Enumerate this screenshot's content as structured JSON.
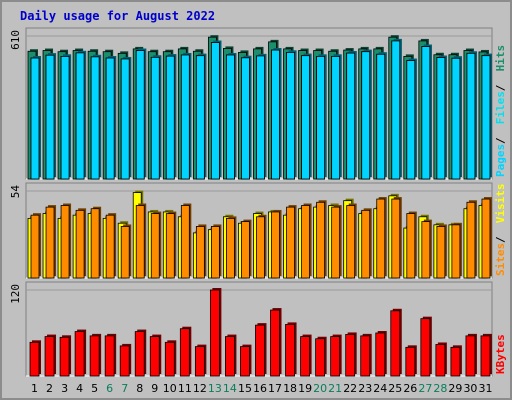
{
  "title": "Daily usage for August 2022",
  "colors": {
    "hits": "#1b8f6c",
    "files": "#00e1f0",
    "pages": "#00d4ff",
    "visits": "#ffff00",
    "sites": "#ff8c00",
    "kbytes": "#ff0000",
    "weekend_day": "#0b7d5b",
    "weekday": "#000000",
    "panel": "#c0c0c0"
  },
  "chart_data": [
    {
      "type": "bar",
      "name": "hits-files-pages",
      "ymax_label": "610",
      "ymax": 610,
      "right_labels": [
        "Pages",
        "Files",
        "Hits"
      ],
      "categories": [
        "1",
        "2",
        "3",
        "4",
        "5",
        "6",
        "7",
        "8",
        "9",
        "10",
        "11",
        "12",
        "13",
        "14",
        "15",
        "16",
        "17",
        "18",
        "19",
        "20",
        "21",
        "22",
        "23",
        "24",
        "25",
        "26",
        "27",
        "28",
        "29",
        "30",
        "31"
      ],
      "weekend": [
        6,
        7,
        13,
        14,
        20,
        21,
        27,
        28
      ],
      "series": [
        {
          "name": "Hits",
          "values": [
            545,
            548,
            543,
            548,
            545,
            543,
            536,
            555,
            543,
            543,
            555,
            545,
            605,
            557,
            540,
            555,
            585,
            555,
            548,
            548,
            545,
            550,
            555,
            555,
            605,
            523,
            589,
            530,
            530,
            548,
            542
          ]
        },
        {
          "name": "Files",
          "values": [
            516,
            528,
            523,
            538,
            521,
            516,
            512,
            548,
            519,
            524,
            529,
            526,
            582,
            529,
            517,
            525,
            550,
            540,
            526,
            523,
            523,
            537,
            543,
            532,
            589,
            505,
            565,
            518,
            515,
            536,
            526
          ]
        },
        {
          "name": "Pages",
          "values": [
            516,
            528,
            523,
            538,
            521,
            516,
            512,
            548,
            519,
            524,
            529,
            526,
            582,
            529,
            517,
            525,
            550,
            540,
            526,
            523,
            523,
            537,
            543,
            532,
            589,
            505,
            565,
            518,
            515,
            536,
            526
          ]
        }
      ]
    },
    {
      "type": "bar",
      "name": "visits-sites",
      "ymax_label": "54",
      "ymax": 54,
      "right_labels": [
        "Sites",
        "Visits"
      ],
      "series": [
        {
          "name": "Visits",
          "values": [
            37,
            40,
            37,
            39,
            40,
            37,
            34,
            53,
            41,
            41,
            38,
            28,
            30,
            38,
            34,
            40,
            41,
            39,
            43,
            44,
            45,
            48,
            40,
            43,
            51,
            31,
            38,
            33,
            33,
            43,
            45
          ]
        },
        {
          "name": "Sites",
          "values": [
            39,
            44,
            45,
            42,
            43,
            39,
            32,
            45,
            40,
            40,
            45,
            32,
            32,
            37,
            35,
            38,
            41,
            44,
            45,
            47,
            44,
            45,
            42,
            49,
            49,
            40,
            35,
            32,
            33,
            47,
            49
          ]
        }
      ]
    },
    {
      "type": "bar",
      "name": "kbytes",
      "ymax_label": "120",
      "ymax": 120,
      "right_labels": [
        "KBytes"
      ],
      "series": [
        {
          "name": "KBytes",
          "values": [
            47,
            55,
            54,
            62,
            56,
            56,
            42,
            62,
            55,
            47,
            66,
            41,
            120,
            55,
            41,
            71,
            92,
            72,
            55,
            52,
            55,
            58,
            56,
            60,
            91,
            40,
            80,
            44,
            40,
            56,
            56
          ]
        }
      ]
    }
  ]
}
